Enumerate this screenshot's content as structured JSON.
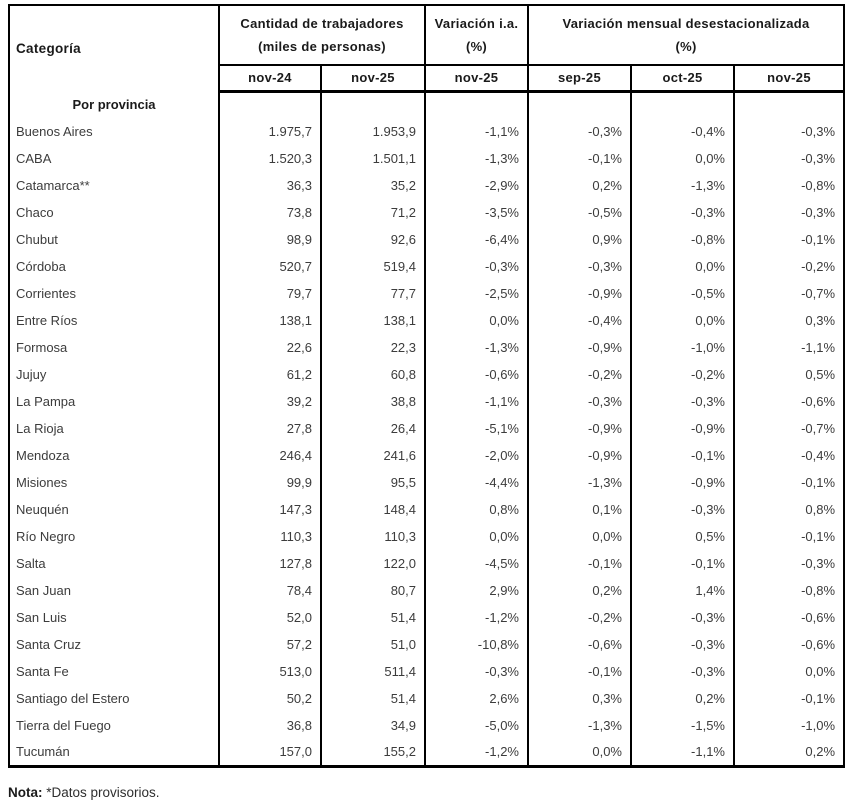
{
  "table": {
    "header": {
      "category": "Categoría",
      "groups": [
        {
          "line1": "Cantidad de trabajadores",
          "line2": "(miles de personas)"
        },
        {
          "line1": "Variación i.a.",
          "line2": "(%)"
        },
        {
          "line1": "Variación mensual desestacionalizada",
          "line2": "(%)"
        }
      ],
      "subheaders": [
        "nov-24",
        "nov-25",
        "nov-25",
        "sep-25",
        "oct-25",
        "nov-25"
      ]
    },
    "section_label": "Por provincia",
    "rows": [
      {
        "name": "Buenos Aires",
        "nov24": "1.975,7",
        "nov25": "1.953,9",
        "ia": "-1,1%",
        "sep": "-0,3%",
        "oct": "-0,4%",
        "nov": "-0,3%"
      },
      {
        "name": "CABA",
        "nov24": "1.520,3",
        "nov25": "1.501,1",
        "ia": "-1,3%",
        "sep": "-0,1%",
        "oct": "0,0%",
        "nov": "-0,3%"
      },
      {
        "name": "Catamarca**",
        "nov24": "36,3",
        "nov25": "35,2",
        "ia": "-2,9%",
        "sep": "0,2%",
        "oct": "-1,3%",
        "nov": "-0,8%"
      },
      {
        "name": "Chaco",
        "nov24": "73,8",
        "nov25": "71,2",
        "ia": "-3,5%",
        "sep": "-0,5%",
        "oct": "-0,3%",
        "nov": "-0,3%"
      },
      {
        "name": "Chubut",
        "nov24": "98,9",
        "nov25": "92,6",
        "ia": "-6,4%",
        "sep": "0,9%",
        "oct": "-0,8%",
        "nov": "-0,1%"
      },
      {
        "name": "Córdoba",
        "nov24": "520,7",
        "nov25": "519,4",
        "ia": "-0,3%",
        "sep": "-0,3%",
        "oct": "0,0%",
        "nov": "-0,2%"
      },
      {
        "name": "Corrientes",
        "nov24": "79,7",
        "nov25": "77,7",
        "ia": "-2,5%",
        "sep": "-0,9%",
        "oct": "-0,5%",
        "nov": "-0,7%"
      },
      {
        "name": "Entre Ríos",
        "nov24": "138,1",
        "nov25": "138,1",
        "ia": "0,0%",
        "sep": "-0,4%",
        "oct": "0,0%",
        "nov": "0,3%"
      },
      {
        "name": "Formosa",
        "nov24": "22,6",
        "nov25": "22,3",
        "ia": "-1,3%",
        "sep": "-0,9%",
        "oct": "-1,0%",
        "nov": "-1,1%"
      },
      {
        "name": "Jujuy",
        "nov24": "61,2",
        "nov25": "60,8",
        "ia": "-0,6%",
        "sep": "-0,2%",
        "oct": "-0,2%",
        "nov": "0,5%"
      },
      {
        "name": "La Pampa",
        "nov24": "39,2",
        "nov25": "38,8",
        "ia": "-1,1%",
        "sep": "-0,3%",
        "oct": "-0,3%",
        "nov": "-0,6%"
      },
      {
        "name": "La Rioja",
        "nov24": "27,8",
        "nov25": "26,4",
        "ia": "-5,1%",
        "sep": "-0,9%",
        "oct": "-0,9%",
        "nov": "-0,7%"
      },
      {
        "name": "Mendoza",
        "nov24": "246,4",
        "nov25": "241,6",
        "ia": "-2,0%",
        "sep": "-0,9%",
        "oct": "-0,1%",
        "nov": "-0,4%"
      },
      {
        "name": "Misiones",
        "nov24": "99,9",
        "nov25": "95,5",
        "ia": "-4,4%",
        "sep": "-1,3%",
        "oct": "-0,9%",
        "nov": "-0,1%"
      },
      {
        "name": "Neuquén",
        "nov24": "147,3",
        "nov25": "148,4",
        "ia": "0,8%",
        "sep": "0,1%",
        "oct": "-0,3%",
        "nov": "0,8%"
      },
      {
        "name": "Río Negro",
        "nov24": "110,3",
        "nov25": "110,3",
        "ia": "0,0%",
        "sep": "0,0%",
        "oct": "0,5%",
        "nov": "-0,1%"
      },
      {
        "name": "Salta",
        "nov24": "127,8",
        "nov25": "122,0",
        "ia": "-4,5%",
        "sep": "-0,1%",
        "oct": "-0,1%",
        "nov": "-0,3%"
      },
      {
        "name": "San Juan",
        "nov24": "78,4",
        "nov25": "80,7",
        "ia": "2,9%",
        "sep": "0,2%",
        "oct": "1,4%",
        "nov": "-0,8%"
      },
      {
        "name": "San Luis",
        "nov24": "52,0",
        "nov25": "51,4",
        "ia": "-1,2%",
        "sep": "-0,2%",
        "oct": "-0,3%",
        "nov": "-0,6%"
      },
      {
        "name": "Santa Cruz",
        "nov24": "57,2",
        "nov25": "51,0",
        "ia": "-10,8%",
        "sep": "-0,6%",
        "oct": "-0,3%",
        "nov": "-0,6%"
      },
      {
        "name": "Santa Fe",
        "nov24": "513,0",
        "nov25": "511,4",
        "ia": "-0,3%",
        "sep": "-0,1%",
        "oct": "-0,3%",
        "nov": "0,0%"
      },
      {
        "name": "Santiago del Estero",
        "nov24": "50,2",
        "nov25": "51,4",
        "ia": "2,6%",
        "sep": "0,3%",
        "oct": "0,2%",
        "nov": "-0,1%"
      },
      {
        "name": "Tierra del Fuego",
        "nov24": "36,8",
        "nov25": "34,9",
        "ia": "-5,0%",
        "sep": "-1,3%",
        "oct": "-1,5%",
        "nov": "-1,0%"
      },
      {
        "name": "Tucumán",
        "nov24": "157,0",
        "nov25": "155,2",
        "ia": "-1,2%",
        "sep": "0,0%",
        "oct": "-1,1%",
        "nov": "0,2%"
      }
    ]
  },
  "note": {
    "label": "Nota:",
    "text": " *Datos provisorios."
  }
}
